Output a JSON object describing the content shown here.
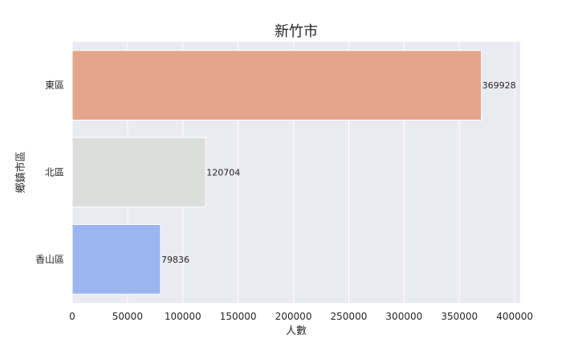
{
  "chart_data": {
    "type": "bar",
    "orientation": "horizontal",
    "title": "新竹市",
    "xlabel": "人數",
    "ylabel": "鄉鎮市區",
    "categories": [
      "東區",
      "北區",
      "香山區"
    ],
    "values": [
      369928,
      120704,
      79836
    ],
    "data_labels": [
      "369928",
      "120704",
      "79836"
    ],
    "colors": [
      "#e5a58c",
      "#dcdedc",
      "#9bb5f0"
    ],
    "xlim": [
      0,
      405000
    ],
    "xticks": [
      0,
      50000,
      100000,
      150000,
      200000,
      250000,
      300000,
      350000,
      400000
    ],
    "xtick_labels": [
      "0",
      "50000",
      "100000",
      "150000",
      "200000",
      "250000",
      "300000",
      "350000",
      "400000"
    ],
    "grid": true,
    "plot_background": "#eaeaf2",
    "grid_color": "#ffffff"
  }
}
